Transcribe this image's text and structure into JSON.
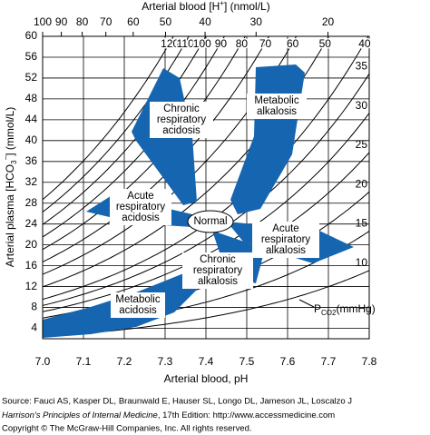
{
  "chart_data": {
    "type": "acid-base-nomogram",
    "top_title": [
      "Arterial blood [H",
      "+",
      "] (nmol/L)"
    ],
    "x_label": "Arterial blood, pH",
    "y_label": [
      "Arterial plasma [HCO",
      "3",
      "−",
      "] (mmol/L)"
    ],
    "xlim": [
      7.0,
      7.8
    ],
    "xticks": [
      {
        "value": 7,
        "label": "7.0"
      },
      7.1,
      7.2,
      7.3,
      7.4,
      7.5,
      7.6,
      7.7,
      7.8
    ],
    "ylim": [
      2,
      60
    ],
    "yticks": [
      4,
      8,
      12,
      16,
      20,
      24,
      28,
      32,
      36,
      40,
      44,
      48,
      52,
      56,
      60
    ],
    "top_ticks": [
      100,
      90,
      80,
      70,
      60,
      50,
      40,
      30,
      20
    ],
    "pco2": [
      120,
      110,
      100,
      90,
      80,
      70,
      60,
      50,
      40,
      35,
      30,
      25,
      20,
      15,
      10
    ],
    "pco2_label": [
      "P",
      "CO2",
      "(mmHg)"
    ],
    "color": "#1565b0",
    "grid": true,
    "regions": [
      {
        "lines": [
          "Chronic",
          "respiratory",
          "acidosis"
        ]
      },
      {
        "lines": [
          "Metabolic",
          "alkalosis"
        ]
      },
      {
        "lines": [
          "Acute",
          "respiratory",
          "acidosis"
        ]
      },
      {
        "lines": [
          "Normal"
        ]
      },
      {
        "lines": [
          "Acute",
          "respiratory",
          "alkalosis"
        ]
      },
      {
        "lines": [
          "Chronic",
          "respiratory",
          "alkalosis"
        ]
      },
      {
        "lines": [
          "Metabolic",
          "acidosis"
        ]
      }
    ],
    "source": [
      "Source: Fauci AS, Kasper DL, Braunwald E, Hauser SL, Longo DL, Jameson JL, Loscalzo J",
      [
        "Harrison's Principles of Internal Medicine",
        ", 17th Edition: http://www.accessmedicine.com"
      ],
      "Copyright © The McGraw-Hill Companies, Inc. All rights reserved."
    ]
  }
}
